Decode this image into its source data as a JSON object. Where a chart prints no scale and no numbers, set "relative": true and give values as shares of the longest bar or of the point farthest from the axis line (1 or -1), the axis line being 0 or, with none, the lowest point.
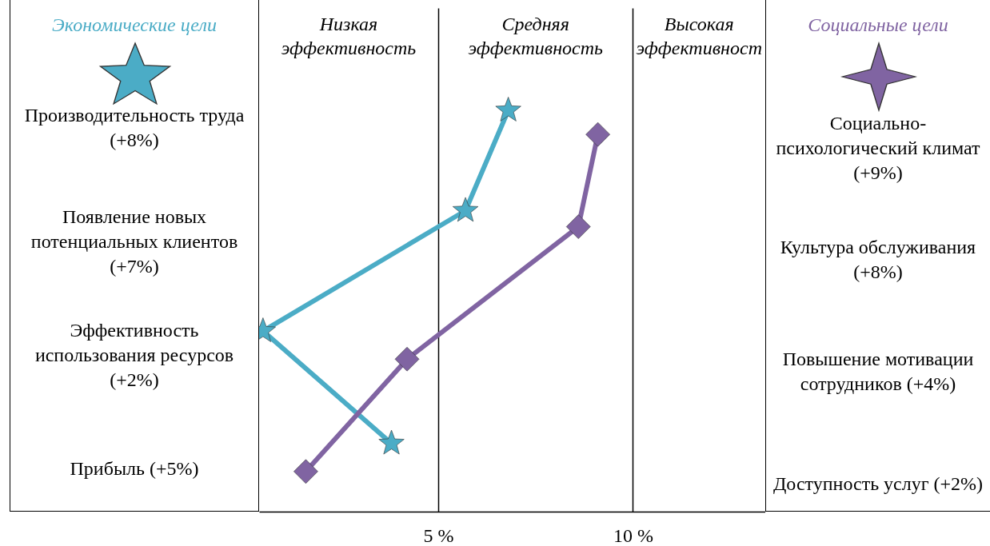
{
  "chart_data": {
    "type": "line",
    "xlim": [
      0.4,
      13.4
    ],
    "xticks": [
      {
        "value": 5,
        "label": "5 %"
      },
      {
        "value": 10,
        "label": "10 %"
      }
    ],
    "grid": "x",
    "relative": true,
    "series": [
      {
        "name": "Экономические цели",
        "color": "#4bacc6",
        "marker": "star",
        "x": [
          6.8,
          5.7,
          0.5,
          3.8
        ],
        "values": [
          1,
          0.75,
          0.45,
          0.17
        ]
      },
      {
        "name": "Социальные цели",
        "color": "#8064a2",
        "marker": "diamond",
        "x": [
          9.1,
          8.6,
          4.2,
          1.6
        ],
        "values": [
          0.94,
          0.71,
          0.38,
          0.1
        ]
      }
    ],
    "annotations": [
      "Низкая эффективность",
      "Средняя эффективность",
      "Высокая эффективност",
      "Производительность труда (+8%)",
      "Появление новых потенциальных клиентов (+7%)",
      "Эффективность использования ресурсов (+2%)",
      "Прибыль (+5%)",
      "Социально-психологический климат (+9%)",
      "Культура обслуживания (+8%)",
      "Повышение мотивации сотрудников (+4%)",
      "Доступность услуг (+2%)"
    ]
  }
}
